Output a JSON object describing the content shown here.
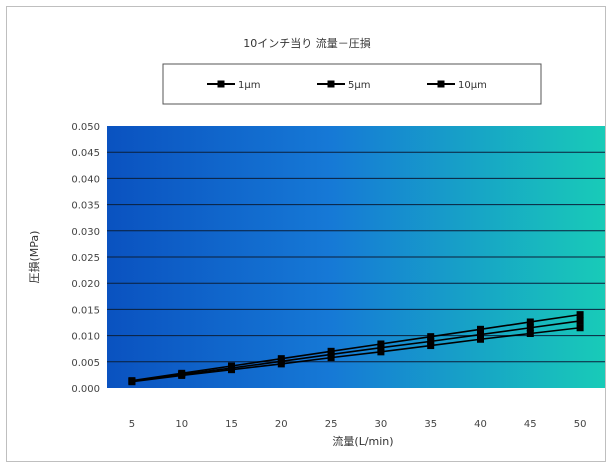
{
  "chart_data": {
    "type": "line",
    "title": "10インチ当り 流量－圧損",
    "xlabel": "流量(L/min)",
    "ylabel": "圧損(MPa)",
    "categories": [
      "5",
      "10",
      "15",
      "20",
      "25",
      "30",
      "35",
      "40",
      "45",
      "50"
    ],
    "x": [
      5,
      10,
      15,
      20,
      25,
      30,
      35,
      40,
      45,
      50
    ],
    "ylim": [
      0,
      0.05
    ],
    "yticks": [
      "0.000",
      "0.005",
      "0.010",
      "0.015",
      "0.020",
      "0.025",
      "0.030",
      "0.035",
      "0.040",
      "0.045",
      "0.050"
    ],
    "grid": true,
    "legend_position": "top",
    "series": [
      {
        "name": "1μm",
        "values": [
          0.0014,
          0.0028,
          0.0042,
          0.0056,
          0.007,
          0.0084,
          0.0098,
          0.0112,
          0.0126,
          0.014
        ]
      },
      {
        "name": "5μm",
        "values": [
          0.0013,
          0.0026,
          0.0038,
          0.0051,
          0.0064,
          0.0077,
          0.0089,
          0.0102,
          0.0115,
          0.0128
        ]
      },
      {
        "name": "10μm",
        "values": [
          0.0012,
          0.0024,
          0.0035,
          0.0046,
          0.0058,
          0.0069,
          0.0081,
          0.0093,
          0.0104,
          0.0115
        ]
      }
    ],
    "colors": {
      "line": "#000000",
      "plot_grad_start": "#0a52c0",
      "plot_grad_end": "#18cbb8",
      "grid": "#0b1f3a"
    }
  }
}
